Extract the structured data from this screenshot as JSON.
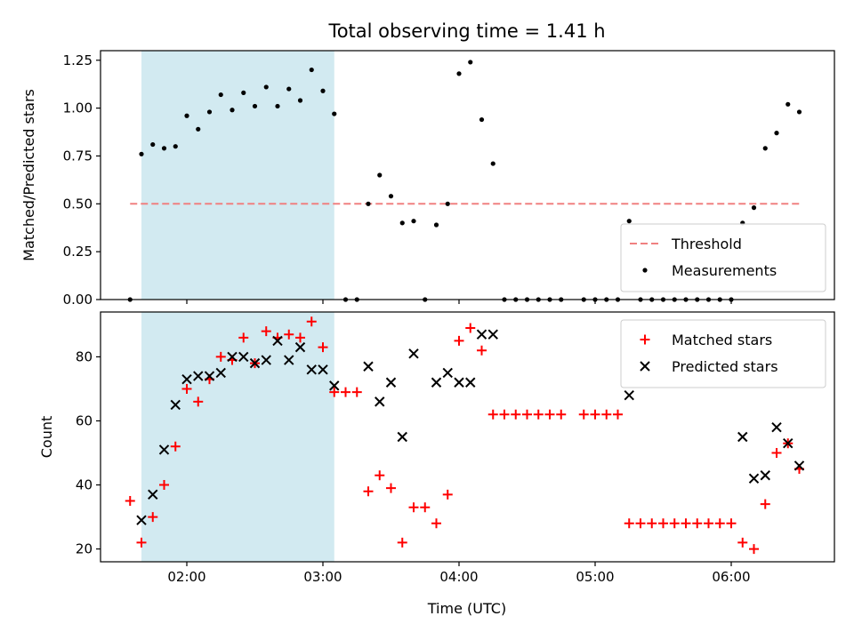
{
  "chart_data": {
    "title": "Total observing time = 1.41 h",
    "shaded_region": {
      "start": "01:40",
      "end": "03:05",
      "color": "#add8e6"
    },
    "x_ticks": [
      "02:00",
      "03:00",
      "04:00",
      "05:00",
      "06:00"
    ],
    "xlabel": "Time (UTC)",
    "panels": [
      {
        "type": "scatter",
        "ylabel": "Matched/Predicted stars",
        "ylim": [
          0,
          1.3
        ],
        "y_ticks": [
          "0.00",
          "0.25",
          "0.50",
          "0.75",
          "1.00",
          "1.25"
        ],
        "threshold": {
          "name": "Threshold",
          "value": 0.5,
          "color": "#f08080",
          "style": "dashed"
        },
        "series": [
          {
            "name": "Measurements",
            "color": "#000000",
            "marker": "dot",
            "points": [
              [
                "01:35",
                0.0
              ],
              [
                "01:40",
                0.76
              ],
              [
                "01:45",
                0.81
              ],
              [
                "01:50",
                0.79
              ],
              [
                "01:55",
                0.8
              ],
              [
                "02:00",
                0.96
              ],
              [
                "02:05",
                0.89
              ],
              [
                "02:10",
                0.98
              ],
              [
                "02:15",
                1.07
              ],
              [
                "02:20",
                0.99
              ],
              [
                "02:25",
                1.08
              ],
              [
                "02:30",
                1.01
              ],
              [
                "02:35",
                1.11
              ],
              [
                "02:40",
                1.01
              ],
              [
                "02:45",
                1.1
              ],
              [
                "02:50",
                1.04
              ],
              [
                "02:55",
                1.2
              ],
              [
                "03:00",
                1.09
              ],
              [
                "03:05",
                0.97
              ],
              [
                "03:10",
                0.0
              ],
              [
                "03:15",
                0.0
              ],
              [
                "03:20",
                0.5
              ],
              [
                "03:25",
                0.65
              ],
              [
                "03:30",
                0.54
              ],
              [
                "03:35",
                0.4
              ],
              [
                "03:40",
                0.41
              ],
              [
                "03:45",
                0.0
              ],
              [
                "03:50",
                0.39
              ],
              [
                "03:55",
                0.5
              ],
              [
                "04:00",
                1.18
              ],
              [
                "04:05",
                1.24
              ],
              [
                "04:10",
                0.94
              ],
              [
                "04:15",
                0.71
              ],
              [
                "04:20",
                0.0
              ],
              [
                "04:25",
                0.0
              ],
              [
                "04:30",
                0.0
              ],
              [
                "04:35",
                0.0
              ],
              [
                "04:40",
                0.0
              ],
              [
                "04:45",
                0.0
              ],
              [
                "04:55",
                0.0
              ],
              [
                "05:00",
                0.0
              ],
              [
                "05:05",
                0.0
              ],
              [
                "05:10",
                0.0
              ],
              [
                "05:15",
                0.41
              ],
              [
                "05:20",
                0.0
              ],
              [
                "05:25",
                0.0
              ],
              [
                "05:30",
                0.0
              ],
              [
                "05:35",
                0.0
              ],
              [
                "05:40",
                0.0
              ],
              [
                "05:45",
                0.0
              ],
              [
                "05:50",
                0.0
              ],
              [
                "05:55",
                0.0
              ],
              [
                "06:00",
                0.0
              ],
              [
                "06:05",
                0.4
              ],
              [
                "06:10",
                0.48
              ],
              [
                "06:15",
                0.79
              ],
              [
                "06:20",
                0.87
              ],
              [
                "06:25",
                1.02
              ],
              [
                "06:30",
                0.98
              ]
            ]
          }
        ],
        "legend": "bottom-right"
      },
      {
        "type": "scatter",
        "ylabel": "Count",
        "ylim": [
          16,
          94
        ],
        "y_ticks": [
          "20",
          "40",
          "60",
          "80"
        ],
        "series": [
          {
            "name": "Matched stars",
            "color": "#ff0000",
            "marker": "plus",
            "points": [
              [
                "01:35",
                35
              ],
              [
                "01:40",
                22
              ],
              [
                "01:45",
                30
              ],
              [
                "01:50",
                40
              ],
              [
                "01:55",
                52
              ],
              [
                "02:00",
                70
              ],
              [
                "02:05",
                66
              ],
              [
                "02:10",
                73
              ],
              [
                "02:15",
                80
              ],
              [
                "02:20",
                79
              ],
              [
                "02:25",
                86
              ],
              [
                "02:30",
                78
              ],
              [
                "02:35",
                88
              ],
              [
                "02:40",
                86
              ],
              [
                "02:45",
                87
              ],
              [
                "02:50",
                86
              ],
              [
                "02:55",
                91
              ],
              [
                "03:00",
                83
              ],
              [
                "03:05",
                69
              ],
              [
                "03:10",
                69
              ],
              [
                "03:15",
                69
              ],
              [
                "03:20",
                38
              ],
              [
                "03:25",
                43
              ],
              [
                "03:30",
                39
              ],
              [
                "03:35",
                22
              ],
              [
                "03:40",
                33
              ],
              [
                "03:45",
                33
              ],
              [
                "03:50",
                28
              ],
              [
                "03:55",
                37
              ],
              [
                "04:00",
                85
              ],
              [
                "04:05",
                89
              ],
              [
                "04:10",
                82
              ],
              [
                "04:15",
                62
              ],
              [
                "04:20",
                62
              ],
              [
                "04:25",
                62
              ],
              [
                "04:30",
                62
              ],
              [
                "04:35",
                62
              ],
              [
                "04:40",
                62
              ],
              [
                "04:45",
                62
              ],
              [
                "04:55",
                62
              ],
              [
                "05:00",
                62
              ],
              [
                "05:05",
                62
              ],
              [
                "05:10",
                62
              ],
              [
                "05:15",
                28
              ],
              [
                "05:20",
                28
              ],
              [
                "05:25",
                28
              ],
              [
                "05:30",
                28
              ],
              [
                "05:35",
                28
              ],
              [
                "05:40",
                28
              ],
              [
                "05:45",
                28
              ],
              [
                "05:50",
                28
              ],
              [
                "05:55",
                28
              ],
              [
                "06:00",
                28
              ],
              [
                "06:05",
                22
              ],
              [
                "06:10",
                20
              ],
              [
                "06:15",
                34
              ],
              [
                "06:20",
                50
              ],
              [
                "06:25",
                53
              ],
              [
                "06:30",
                45
              ]
            ]
          },
          {
            "name": "Predicted stars",
            "color": "#000000",
            "marker": "x",
            "points": [
              [
                "01:40",
                29
              ],
              [
                "01:45",
                37
              ],
              [
                "01:50",
                51
              ],
              [
                "01:55",
                65
              ],
              [
                "02:00",
                73
              ],
              [
                "02:05",
                74
              ],
              [
                "02:10",
                74
              ],
              [
                "02:15",
                75
              ],
              [
                "02:20",
                80
              ],
              [
                "02:25",
                80
              ],
              [
                "02:30",
                78
              ],
              [
                "02:35",
                79
              ],
              [
                "02:40",
                85
              ],
              [
                "02:45",
                79
              ],
              [
                "02:50",
                83
              ],
              [
                "02:55",
                76
              ],
              [
                "03:00",
                76
              ],
              [
                "03:05",
                71
              ],
              [
                "03:20",
                77
              ],
              [
                "03:25",
                66
              ],
              [
                "03:30",
                72
              ],
              [
                "03:35",
                55
              ],
              [
                "03:40",
                81
              ],
              [
                "03:50",
                72
              ],
              [
                "03:55",
                75
              ],
              [
                "04:00",
                72
              ],
              [
                "04:05",
                72
              ],
              [
                "04:10",
                87
              ],
              [
                "04:15",
                87
              ],
              [
                "05:15",
                68
              ],
              [
                "06:05",
                55
              ],
              [
                "06:10",
                42
              ],
              [
                "06:15",
                43
              ],
              [
                "06:20",
                58
              ],
              [
                "06:25",
                53
              ],
              [
                "06:30",
                46
              ]
            ]
          }
        ],
        "legend": "top-right"
      }
    ]
  }
}
